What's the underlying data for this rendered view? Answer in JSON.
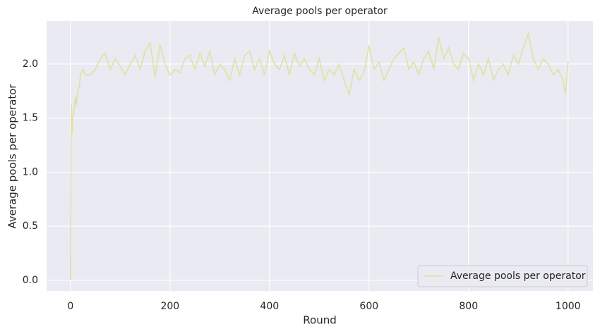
{
  "chart_data": {
    "type": "line",
    "title": "Average pools per operator",
    "x_label": "Round",
    "y_label": "Average pools per operator",
    "x": [
      0,
      1,
      2,
      3,
      4,
      6,
      8,
      10,
      12,
      15,
      18,
      20,
      25,
      30,
      40,
      50,
      60,
      70,
      80,
      90,
      100,
      110,
      120,
      130,
      140,
      150,
      160,
      170,
      180,
      190,
      200,
      210,
      220,
      230,
      240,
      250,
      260,
      270,
      280,
      290,
      300,
      310,
      320,
      330,
      340,
      350,
      360,
      370,
      380,
      390,
      400,
      410,
      420,
      430,
      440,
      450,
      460,
      470,
      480,
      490,
      500,
      510,
      520,
      530,
      540,
      550,
      560,
      570,
      580,
      590,
      600,
      610,
      620,
      630,
      640,
      650,
      660,
      670,
      680,
      690,
      700,
      710,
      720,
      730,
      740,
      750,
      760,
      770,
      780,
      790,
      800,
      810,
      820,
      830,
      840,
      850,
      860,
      870,
      880,
      890,
      900,
      910,
      920,
      930,
      940,
      950,
      960,
      970,
      980,
      990,
      995,
      1000
    ],
    "series": [
      {
        "name": "Average pools per operator",
        "color": "#e0e1a2",
        "values": [
          0,
          1.2,
          1.63,
          1.35,
          1.5,
          1.55,
          1.6,
          1.7,
          1.62,
          1.75,
          1.8,
          1.9,
          1.95,
          1.9,
          1.9,
          1.95,
          2.05,
          2.1,
          1.95,
          2.05,
          1.98,
          1.9,
          2.0,
          2.08,
          1.95,
          2.12,
          2.2,
          1.88,
          2.18,
          2.0,
          1.9,
          1.95,
          1.92,
          2.05,
          2.08,
          1.95,
          2.1,
          1.98,
          2.12,
          1.9,
          2.0,
          1.95,
          1.85,
          2.05,
          1.9,
          2.08,
          2.12,
          1.95,
          2.05,
          1.9,
          2.12,
          2.0,
          1.95,
          2.08,
          1.9,
          2.1,
          1.98,
          2.05,
          1.95,
          1.9,
          2.05,
          1.85,
          1.95,
          1.9,
          2.0,
          1.85,
          1.72,
          1.95,
          1.85,
          1.92,
          2.17,
          1.95,
          2.02,
          1.85,
          1.95,
          2.05,
          2.1,
          2.15,
          1.95,
          2.02,
          1.9,
          2.05,
          2.12,
          1.95,
          2.25,
          2.05,
          2.15,
          2.0,
          1.95,
          2.1,
          2.05,
          1.85,
          2.0,
          1.9,
          2.05,
          1.85,
          1.95,
          2.0,
          1.9,
          2.08,
          2.0,
          2.15,
          2.28,
          2.05,
          1.95,
          2.05,
          2.0,
          1.9,
          1.95,
          1.85,
          1.72,
          2.02
        ]
      }
    ],
    "xlim": [
      -48,
      1050
    ],
    "ylim": [
      -0.098,
      2.397
    ],
    "xticks": [
      0,
      200,
      400,
      600,
      800,
      1000
    ],
    "yticks": [
      {
        "value": 0,
        "label": "0.0"
      },
      {
        "value": 0.5,
        "label": "0.5"
      },
      {
        "value": 1,
        "label": "1.0"
      },
      {
        "value": 1.5,
        "label": "1.5"
      },
      {
        "value": 2,
        "label": "2.0"
      }
    ],
    "grid": true,
    "legend": "lower right"
  }
}
